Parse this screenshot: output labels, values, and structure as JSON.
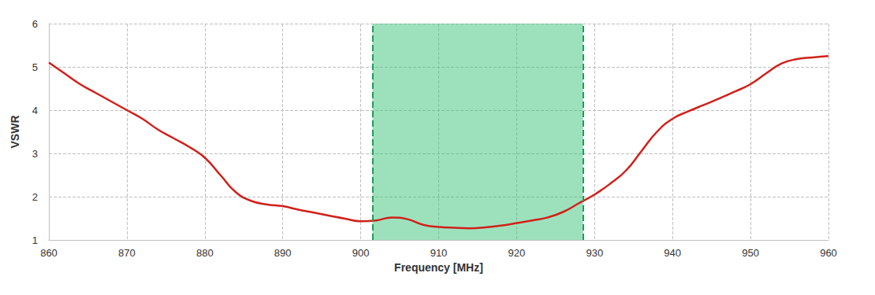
{
  "chart_data": {
    "type": "line",
    "x_label": "Frequency [MHz]",
    "y_label": "VSWR",
    "x": [
      860,
      862,
      864,
      866,
      868,
      870,
      872,
      874,
      876,
      878,
      880,
      882,
      884,
      886,
      888,
      890,
      892,
      894,
      896,
      898,
      900,
      902,
      904,
      906,
      908,
      910,
      912,
      914,
      916,
      918,
      920,
      922,
      924,
      926,
      928,
      930,
      932,
      934,
      936,
      938,
      940,
      942,
      944,
      946,
      948,
      950,
      952,
      954,
      956,
      958,
      960
    ],
    "values": [
      5.1,
      4.85,
      4.6,
      4.4,
      4.2,
      4.0,
      3.8,
      3.55,
      3.35,
      3.15,
      2.9,
      2.5,
      2.1,
      1.9,
      1.82,
      1.78,
      1.7,
      1.63,
      1.56,
      1.49,
      1.43,
      1.45,
      1.52,
      1.48,
      1.35,
      1.3,
      1.28,
      1.27,
      1.29,
      1.33,
      1.39,
      1.45,
      1.52,
      1.65,
      1.85,
      2.05,
      2.3,
      2.6,
      3.05,
      3.5,
      3.8,
      3.97,
      4.12,
      4.27,
      4.43,
      4.6,
      4.85,
      5.08,
      5.18,
      5.22,
      5.25
    ],
    "color": "#d0201a",
    "xlim": [
      860,
      960
    ],
    "xticks": [
      860,
      870,
      880,
      890,
      900,
      910,
      920,
      930,
      940,
      950,
      960
    ],
    "ylim": [
      1,
      6
    ],
    "yticks": [
      1,
      2,
      3,
      4,
      5,
      6
    ],
    "grid": true,
    "band": {
      "x": [
        901.5,
        928.5
      ],
      "color": "#3cc47a"
    }
  }
}
